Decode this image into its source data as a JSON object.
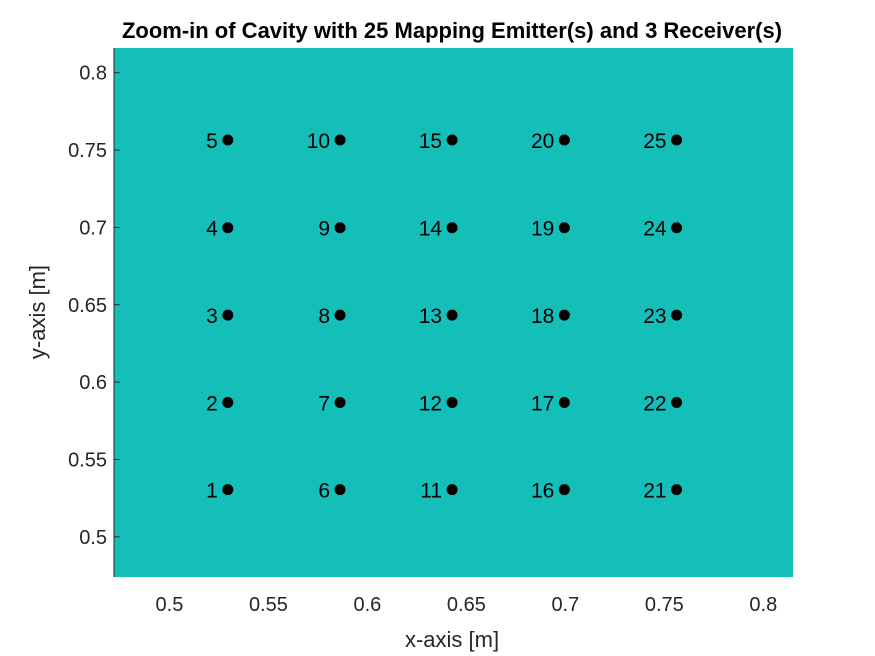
{
  "chart_data": {
    "type": "scatter",
    "title": "Zoom-in of Cavity with 25 Mapping Emitter(s) and 3 Receiver(s)",
    "xlabel": "x-axis [m]",
    "ylabel": "y-axis [m]",
    "xlim": [
      0.472,
      0.815
    ],
    "ylim": [
      0.474,
      0.816
    ],
    "xticks": [
      0.5,
      0.55,
      0.6,
      0.65,
      0.7,
      0.75,
      0.8
    ],
    "xtick_labels": [
      "0.5",
      "0.55",
      "0.6",
      "0.65",
      "0.7",
      "0.75",
      "0.8"
    ],
    "yticks": [
      0.5,
      0.55,
      0.6,
      0.65,
      0.7,
      0.75,
      0.8
    ],
    "ytick_labels": [
      "0.5",
      "0.55",
      "0.6",
      "0.65",
      "0.7",
      "0.75",
      "0.8"
    ],
    "grid": false,
    "background_color": "#14bfba",
    "marker_color": "#000000",
    "points": [
      {
        "label": "1",
        "x": 0.5295,
        "y": 0.5305
      },
      {
        "label": "2",
        "x": 0.5295,
        "y": 0.5868
      },
      {
        "label": "3",
        "x": 0.5295,
        "y": 0.6433
      },
      {
        "label": "4",
        "x": 0.5295,
        "y": 0.6998
      },
      {
        "label": "5",
        "x": 0.5295,
        "y": 0.7565
      },
      {
        "label": "6",
        "x": 0.5862,
        "y": 0.5305
      },
      {
        "label": "7",
        "x": 0.5862,
        "y": 0.5868
      },
      {
        "label": "8",
        "x": 0.5862,
        "y": 0.6433
      },
      {
        "label": "9",
        "x": 0.5862,
        "y": 0.6998
      },
      {
        "label": "10",
        "x": 0.5862,
        "y": 0.7565
      },
      {
        "label": "11",
        "x": 0.6428,
        "y": 0.5305
      },
      {
        "label": "12",
        "x": 0.6428,
        "y": 0.5868
      },
      {
        "label": "13",
        "x": 0.6428,
        "y": 0.6433
      },
      {
        "label": "14",
        "x": 0.6428,
        "y": 0.6998
      },
      {
        "label": "15",
        "x": 0.6428,
        "y": 0.7565
      },
      {
        "label": "16",
        "x": 0.6995,
        "y": 0.5305
      },
      {
        "label": "17",
        "x": 0.6995,
        "y": 0.5868
      },
      {
        "label": "18",
        "x": 0.6995,
        "y": 0.6433
      },
      {
        "label": "19",
        "x": 0.6995,
        "y": 0.6998
      },
      {
        "label": "20",
        "x": 0.6995,
        "y": 0.7565
      },
      {
        "label": "21",
        "x": 0.7562,
        "y": 0.5305
      },
      {
        "label": "22",
        "x": 0.7562,
        "y": 0.5868
      },
      {
        "label": "23",
        "x": 0.7562,
        "y": 0.6433
      },
      {
        "label": "24",
        "x": 0.7562,
        "y": 0.6998
      },
      {
        "label": "25",
        "x": 0.7562,
        "y": 0.7565
      }
    ]
  }
}
